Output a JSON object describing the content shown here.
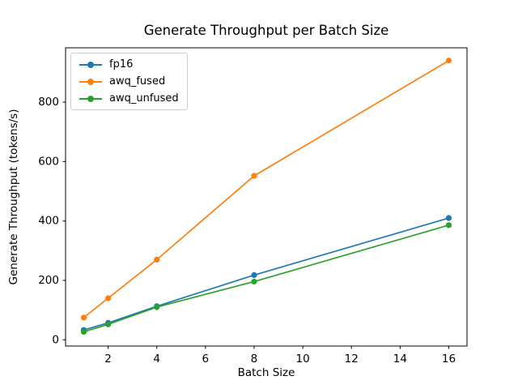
{
  "chart_data": {
    "type": "line",
    "title": "Generate Throughput per Batch Size",
    "xlabel": "Batch Size",
    "ylabel": "Generate Throughput (tokens/s)",
    "x": [
      1,
      2,
      4,
      8,
      16
    ],
    "series": [
      {
        "name": "fp16",
        "color": "#1f77b4",
        "values": [
          33,
          57,
          113,
          218,
          410
        ]
      },
      {
        "name": "awq_fused",
        "color": "#ff7f0e",
        "values": [
          75,
          140,
          270,
          552,
          940
        ]
      },
      {
        "name": "awq_unfused",
        "color": "#2ca02c",
        "values": [
          27,
          52,
          110,
          196,
          386
        ]
      }
    ],
    "xlim": [
      0.25,
      16.75
    ],
    "ylim": [
      -21,
      983
    ],
    "xticks": [
      "2",
      "4",
      "6",
      "8",
      "10",
      "12",
      "14",
      "16"
    ],
    "yticks": [
      "0",
      "200",
      "400",
      "600",
      "800"
    ],
    "grid": false,
    "legend_position": "upper left",
    "marker": "circle",
    "line_width": 1.7,
    "marker_radius": 3.6,
    "background_color": "#ffffff",
    "spine_color": "#000000",
    "tick_label_color": "#000000",
    "legend_border_color": "#cccccc"
  }
}
